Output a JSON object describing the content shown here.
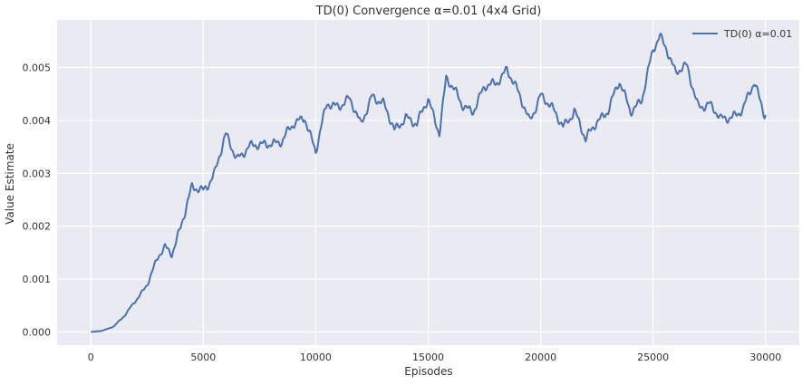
{
  "chart_data": {
    "type": "line",
    "title": "TD(0) Convergence α=0.01 (4x4 Grid)",
    "xlabel": "Episodes",
    "ylabel": "Value Estimate",
    "xlim": [
      -1500,
      31500
    ],
    "ylim": [
      -0.00025,
      0.0059
    ],
    "xticks": [
      0,
      5000,
      10000,
      15000,
      20000,
      25000,
      30000
    ],
    "xtick_labels": [
      "0",
      "5000",
      "10000",
      "15000",
      "20000",
      "25000",
      "30000"
    ],
    "yticks": [
      0.0,
      0.001,
      0.002,
      0.003,
      0.004,
      0.005
    ],
    "ytick_labels": [
      "0.000",
      "0.001",
      "0.002",
      "0.003",
      "0.004",
      "0.005"
    ],
    "grid": true,
    "legend": "top-right",
    "series": [
      {
        "name": "TD(0) α=0.01",
        "color": "#4c72b0",
        "x": [
          0,
          500,
          1000,
          1500,
          2000,
          2500,
          3000,
          3300,
          3600,
          4000,
          4500,
          5000,
          5500,
          6000,
          6500,
          7000,
          7500,
          8000,
          8500,
          9000,
          9500,
          10000,
          10500,
          11000,
          11500,
          12000,
          12500,
          13000,
          13500,
          14000,
          14500,
          15000,
          15500,
          15800,
          16500,
          17000,
          17500,
          18000,
          18500,
          19000,
          19500,
          20000,
          20500,
          21000,
          21500,
          22000,
          22500,
          23000,
          23500,
          24000,
          24500,
          25000,
          25300,
          25600,
          26000,
          26500,
          27000,
          27500,
          28000,
          28500,
          29000,
          29500,
          30000
        ],
        "y": [
          0.0,
          2e-05,
          0.0001,
          0.0003,
          0.0006,
          0.0009,
          0.0014,
          0.0016,
          0.0015,
          0.002,
          0.0027,
          0.0027,
          0.003,
          0.0037,
          0.0033,
          0.0035,
          0.0035,
          0.0036,
          0.0036,
          0.0039,
          0.0041,
          0.0034,
          0.0043,
          0.0043,
          0.0044,
          0.0039,
          0.0045,
          0.0043,
          0.0038,
          0.0041,
          0.0039,
          0.0044,
          0.0038,
          0.0048,
          0.0043,
          0.0042,
          0.0046,
          0.0047,
          0.005,
          0.0045,
          0.004,
          0.0045,
          0.0042,
          0.0039,
          0.0042,
          0.0036,
          0.004,
          0.0042,
          0.0047,
          0.0042,
          0.0044,
          0.0053,
          0.0056,
          0.0054,
          0.0049,
          0.005,
          0.0043,
          0.0043,
          0.004,
          0.0041,
          0.0042,
          0.0047,
          0.0041
        ]
      }
    ]
  }
}
